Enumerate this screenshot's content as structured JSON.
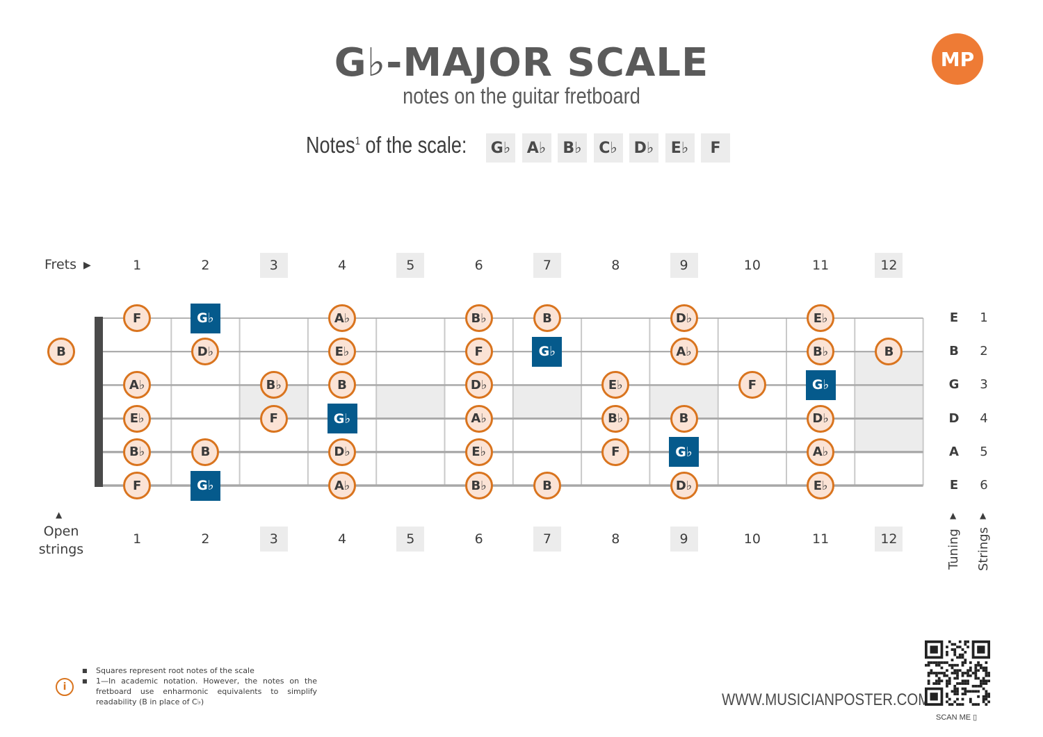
{
  "header": {
    "title": "G♭-MAJOR SCALE",
    "subtitle": "notes on the guitar fretboard",
    "notes_label": "Notes",
    "notes_sup": "1",
    "notes_label_suffix": " of the scale:",
    "scale_notes": [
      "G♭",
      "A♭",
      "B♭",
      "C♭",
      "D♭",
      "E♭",
      "F"
    ]
  },
  "logo": {
    "text": "MP",
    "color": "#ee7b35"
  },
  "fretboard": {
    "frets_label": "Frets",
    "fret_numbers": [
      "1",
      "2",
      "3",
      "4",
      "5",
      "6",
      "7",
      "8",
      "9",
      "10",
      "11",
      "12"
    ],
    "highlighted_frets": [
      3,
      5,
      7,
      9,
      12
    ],
    "open_strings_label": [
      "Open",
      "strings"
    ],
    "tuning_label": "Tuning",
    "strings_label": "Strings",
    "tuning": [
      "E",
      "B",
      "G",
      "D",
      "A",
      "E"
    ],
    "string_numbers": [
      "1",
      "2",
      "3",
      "4",
      "5",
      "6"
    ],
    "open_notes": [
      {
        "string": 2,
        "note": "B"
      }
    ],
    "notes": [
      {
        "string": 1,
        "fret": 1,
        "note": "F"
      },
      {
        "string": 1,
        "fret": 2,
        "note": "G♭",
        "root": true
      },
      {
        "string": 1,
        "fret": 4,
        "note": "A♭"
      },
      {
        "string": 1,
        "fret": 6,
        "note": "B♭"
      },
      {
        "string": 1,
        "fret": 7,
        "note": "B"
      },
      {
        "string": 1,
        "fret": 9,
        "note": "D♭"
      },
      {
        "string": 1,
        "fret": 11,
        "note": "E♭"
      },
      {
        "string": 2,
        "fret": 2,
        "note": "D♭"
      },
      {
        "string": 2,
        "fret": 4,
        "note": "E♭"
      },
      {
        "string": 2,
        "fret": 6,
        "note": "F"
      },
      {
        "string": 2,
        "fret": 7,
        "note": "G♭",
        "root": true
      },
      {
        "string": 2,
        "fret": 9,
        "note": "A♭"
      },
      {
        "string": 2,
        "fret": 11,
        "note": "B♭"
      },
      {
        "string": 2,
        "fret": 12,
        "note": "B"
      },
      {
        "string": 3,
        "fret": 1,
        "note": "A♭"
      },
      {
        "string": 3,
        "fret": 3,
        "note": "B♭"
      },
      {
        "string": 3,
        "fret": 4,
        "note": "B"
      },
      {
        "string": 3,
        "fret": 6,
        "note": "D♭"
      },
      {
        "string": 3,
        "fret": 8,
        "note": "E♭"
      },
      {
        "string": 3,
        "fret": 10,
        "note": "F"
      },
      {
        "string": 3,
        "fret": 11,
        "note": "G♭",
        "root": true
      },
      {
        "string": 4,
        "fret": 1,
        "note": "E♭"
      },
      {
        "string": 4,
        "fret": 3,
        "note": "F"
      },
      {
        "string": 4,
        "fret": 4,
        "note": "G♭",
        "root": true
      },
      {
        "string": 4,
        "fret": 6,
        "note": "A♭"
      },
      {
        "string": 4,
        "fret": 8,
        "note": "B♭"
      },
      {
        "string": 4,
        "fret": 9,
        "note": "B"
      },
      {
        "string": 4,
        "fret": 11,
        "note": "D♭"
      },
      {
        "string": 5,
        "fret": 1,
        "note": "B♭"
      },
      {
        "string": 5,
        "fret": 2,
        "note": "B"
      },
      {
        "string": 5,
        "fret": 4,
        "note": "D♭"
      },
      {
        "string": 5,
        "fret": 6,
        "note": "E♭"
      },
      {
        "string": 5,
        "fret": 8,
        "note": "F"
      },
      {
        "string": 5,
        "fret": 9,
        "note": "G♭",
        "root": true
      },
      {
        "string": 5,
        "fret": 11,
        "note": "A♭"
      },
      {
        "string": 6,
        "fret": 1,
        "note": "F"
      },
      {
        "string": 6,
        "fret": 2,
        "note": "G♭",
        "root": true
      },
      {
        "string": 6,
        "fret": 4,
        "note": "A♭"
      },
      {
        "string": 6,
        "fret": 6,
        "note": "B♭"
      },
      {
        "string": 6,
        "fret": 7,
        "note": "B"
      },
      {
        "string": 6,
        "fret": 9,
        "note": "D♭"
      },
      {
        "string": 6,
        "fret": 11,
        "note": "E♭"
      }
    ],
    "colors": {
      "circle_fill": "#fbe3d5",
      "circle_border": "#d9741e",
      "root_fill": "#055a8c",
      "inlay": "#ececec"
    }
  },
  "footer": {
    "footnote_1": "Squares represent root notes of the scale",
    "footnote_2": "1—In academic notation. However, the notes on the fretboard use enharmonic equivalents to simplify readability (B in place of C♭)",
    "info_icon": "i",
    "website": "WWW.MUSICIANPOSTER.COM",
    "scan_label": "SCAN ME ▯"
  }
}
